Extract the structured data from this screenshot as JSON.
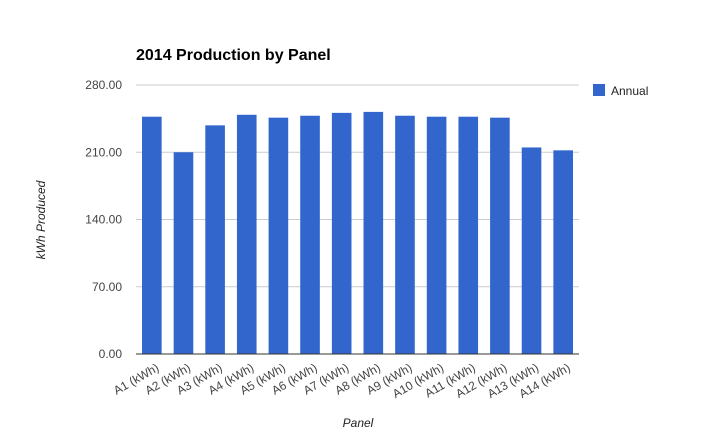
{
  "chart_data": {
    "type": "bar",
    "title": "2014 Production by Panel",
    "xlabel": "Panel",
    "ylabel": "kWh Produced",
    "categories": [
      "A1 (kWh)",
      "A2 (kWh)",
      "A3 (kWh)",
      "A4 (kWh)",
      "A5 (kWh)",
      "A6 (kWh)",
      "A7 (kWh)",
      "A8 (kWh)",
      "A9 (kWh)",
      "A10 (kWh)",
      "A11 (kWh)",
      "A12 (kWh)",
      "A13 (kWh)",
      "A14 (kWh)"
    ],
    "series": [
      {
        "name": "Annual",
        "color": "#3366cc",
        "values": [
          247,
          210,
          238,
          249,
          246,
          248,
          251,
          252,
          248,
          247,
          247,
          246,
          215,
          212
        ]
      }
    ],
    "ylim": [
      0,
      280
    ],
    "yticks": [
      "0.00",
      "70.00",
      "140.00",
      "210.00",
      "280.00"
    ],
    "ytick_values": [
      0,
      70,
      140,
      210,
      280
    ],
    "grid": true,
    "legend_position": "right"
  }
}
